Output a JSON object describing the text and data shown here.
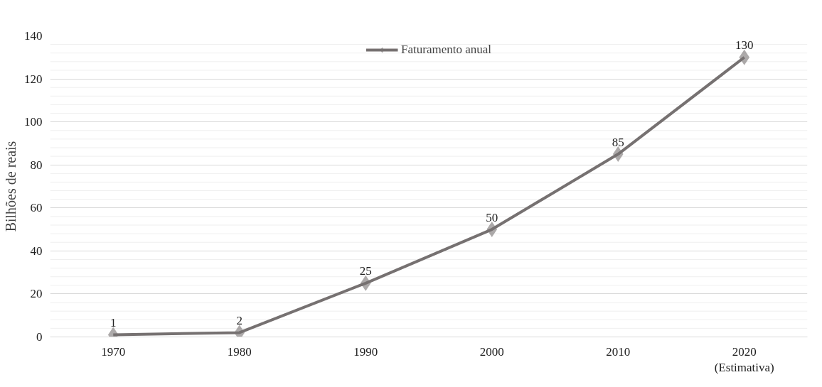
{
  "chart_data": {
    "type": "line",
    "ylabel": "Bilhões de reais",
    "categories": [
      "1970",
      "1980",
      "1990",
      "2000",
      "2010",
      "2020\n(Estimativa)"
    ],
    "series": [
      {
        "name": "Faturamento anual",
        "color": "#767171",
        "values": [
          1,
          2,
          25,
          50,
          85,
          130
        ]
      }
    ],
    "ylim": [
      0,
      140
    ],
    "yticks": [
      0,
      20,
      40,
      60,
      80,
      100,
      120,
      140
    ],
    "grid": "y",
    "legend": "top",
    "marker": "diamond",
    "line_style": "solid",
    "data_labels": true
  }
}
